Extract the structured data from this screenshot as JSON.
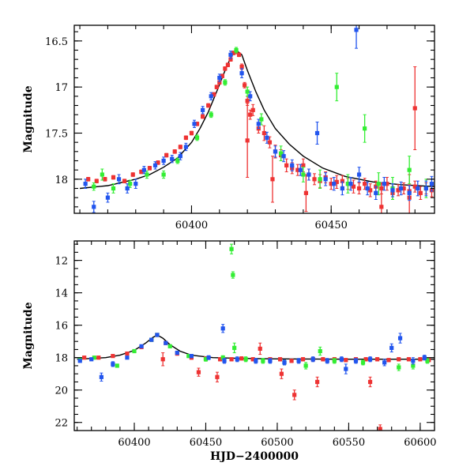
{
  "chart_data": [
    {
      "type": "scatter",
      "title": "",
      "xlabel": "",
      "ylabel": "Magnitude",
      "xlim": [
        60358,
        60487
      ],
      "ylim": [
        18.37,
        16.33
      ],
      "y_inverted": true,
      "x_ticks": [
        60400,
        60450
      ],
      "y_ticks": [
        16.5,
        17,
        17.5,
        18
      ],
      "y_tick_labels": [
        "16.5",
        "17",
        "17.5",
        "18"
      ],
      "minor_x_step": 10,
      "minor_y_step": 0.1,
      "grid": false,
      "legend": "none",
      "model_curve": {
        "name": "",
        "x": [
          60360,
          60370,
          60380,
          60385,
          60390,
          60395,
          60400,
          60403,
          60406,
          60409,
          60412,
          60414,
          60416,
          60418,
          60420,
          60423,
          60426,
          60430,
          60435,
          60440,
          60447,
          60455,
          60465,
          60475,
          60487
        ],
        "y": [
          18.1,
          18.07,
          18.0,
          17.95,
          17.87,
          17.77,
          17.6,
          17.45,
          17.27,
          17.05,
          16.82,
          16.68,
          16.6,
          16.65,
          16.82,
          17.05,
          17.25,
          17.45,
          17.62,
          17.75,
          17.88,
          17.97,
          18.03,
          18.06,
          18.08
        ]
      },
      "series": [
        {
          "color": "#ee3333",
          "x": [
            60363,
            60366,
            60369,
            60372,
            60376,
            60379,
            60382,
            60385,
            60388,
            60391,
            60394,
            60396,
            60398,
            60400,
            60402,
            60404,
            60406,
            60408,
            60409,
            60410,
            60411,
            60412,
            60413,
            60414,
            60415,
            60416,
            60417,
            60418,
            60419,
            60420,
            60421,
            60422,
            60424,
            60426,
            60428,
            60430,
            60432,
            60434,
            60436,
            60438,
            60440,
            60442,
            60444,
            60446,
            60448,
            60450,
            60452,
            60454,
            60456,
            60458,
            60460,
            60462,
            60464,
            60466,
            60468,
            60470,
            60472,
            60474,
            60476,
            60478,
            60480,
            60482,
            60484,
            60486,
            60420,
            60429,
            60441,
            60468,
            60478,
            60480
          ],
          "y": [
            18.0,
            18.02,
            18.0,
            17.98,
            18.02,
            17.95,
            17.92,
            17.88,
            17.82,
            17.74,
            17.7,
            17.65,
            17.55,
            17.5,
            17.4,
            17.32,
            17.2,
            17.08,
            17.0,
            16.95,
            16.88,
            16.8,
            16.76,
            16.7,
            16.63,
            16.62,
            16.65,
            16.78,
            16.98,
            17.15,
            17.3,
            17.25,
            17.45,
            17.5,
            17.6,
            17.7,
            17.74,
            17.85,
            17.88,
            17.9,
            17.85,
            17.95,
            18.0,
            18.02,
            17.98,
            18.05,
            18.03,
            18.02,
            18.05,
            18.08,
            18.1,
            18.05,
            18.12,
            18.08,
            18.1,
            18.05,
            18.15,
            18.12,
            18.1,
            18.13,
            18.08,
            18.15,
            18.1,
            18.12,
            17.58,
            18.0,
            18.15,
            18.3,
            18.2,
            17.23
          ],
          "yerr": [
            0.02,
            0.02,
            0.02,
            0.02,
            0.02,
            0.02,
            0.02,
            0.02,
            0.02,
            0.02,
            0.02,
            0.02,
            0.02,
            0.02,
            0.02,
            0.02,
            0.02,
            0.02,
            0.02,
            0.02,
            0.02,
            0.02,
            0.02,
            0.02,
            0.02,
            0.02,
            0.02,
            0.03,
            0.03,
            0.05,
            0.05,
            0.06,
            0.05,
            0.08,
            0.06,
            0.07,
            0.06,
            0.07,
            0.06,
            0.06,
            0.07,
            0.06,
            0.06,
            0.07,
            0.06,
            0.06,
            0.07,
            0.06,
            0.06,
            0.07,
            0.06,
            0.06,
            0.07,
            0.06,
            0.06,
            0.07,
            0.07,
            0.06,
            0.06,
            0.07,
            0.06,
            0.07,
            0.06,
            0.07,
            0.4,
            0.25,
            0.2,
            0.25,
            0.25,
            0.45
          ]
        },
        {
          "color": "#33ee33",
          "x": [
            60365,
            60368,
            60372,
            60378,
            60384,
            60390,
            60395,
            60402,
            60407,
            60412,
            60416,
            60420,
            60425,
            60432,
            60440,
            60446,
            60452,
            60456,
            60462,
            60467,
            60472,
            60478,
            60484
          ],
          "y": [
            18.08,
            17.95,
            18.1,
            18.05,
            17.95,
            17.95,
            17.8,
            17.55,
            17.3,
            16.95,
            16.6,
            17.05,
            17.35,
            17.72,
            17.95,
            18.0,
            17.0,
            18.05,
            17.45,
            18.05,
            18.1,
            17.9,
            18.1
          ],
          "yerr": [
            0.04,
            0.06,
            0.05,
            0.04,
            0.04,
            0.04,
            0.03,
            0.03,
            0.03,
            0.03,
            0.03,
            0.05,
            0.06,
            0.08,
            0.08,
            0.1,
            0.15,
            0.1,
            0.15,
            0.12,
            0.12,
            0.15,
            0.1
          ]
        },
        {
          "color": "#2255ee",
          "x": [
            60362,
            60365,
            60370,
            60374,
            60377,
            60380,
            60383,
            60387,
            60390,
            60393,
            60396,
            60398,
            60401,
            60404,
            60407,
            60410,
            60414,
            60418,
            60421,
            60424,
            60427,
            60430,
            60433,
            60436,
            60439,
            60442,
            60445,
            60448,
            60451,
            60454,
            60457,
            60460,
            60463,
            60466,
            60469,
            60472,
            60475,
            60478,
            60481,
            60484,
            60486,
            60459
          ],
          "y": [
            18.05,
            18.3,
            18.2,
            18.0,
            18.1,
            18.05,
            17.9,
            17.85,
            17.8,
            17.78,
            17.75,
            17.65,
            17.4,
            17.25,
            17.1,
            16.9,
            16.65,
            16.85,
            17.1,
            17.4,
            17.55,
            17.7,
            17.75,
            17.85,
            17.9,
            17.95,
            17.5,
            18.0,
            18.05,
            18.1,
            18.05,
            17.95,
            18.1,
            18.15,
            18.05,
            18.12,
            18.1,
            18.15,
            18.1,
            18.1,
            18.05,
            16.38
          ],
          "yerr": [
            0.05,
            0.06,
            0.05,
            0.05,
            0.05,
            0.05,
            0.04,
            0.04,
            0.04,
            0.04,
            0.04,
            0.04,
            0.04,
            0.04,
            0.04,
            0.04,
            0.04,
            0.05,
            0.05,
            0.05,
            0.06,
            0.06,
            0.06,
            0.06,
            0.06,
            0.06,
            0.12,
            0.07,
            0.07,
            0.07,
            0.07,
            0.08,
            0.07,
            0.07,
            0.07,
            0.07,
            0.07,
            0.08,
            0.08,
            0.08,
            0.08,
            0.2
          ]
        }
      ]
    },
    {
      "type": "scatter",
      "title": "",
      "xlabel": "HJD−2400000",
      "ylabel": "Magnitude",
      "xlim": [
        60358,
        60610
      ],
      "ylim": [
        22.5,
        10.8
      ],
      "y_inverted": true,
      "x_ticks": [
        60400,
        60450,
        60500,
        60550,
        60600
      ],
      "y_ticks": [
        12,
        14,
        16,
        18,
        20,
        22
      ],
      "y_tick_labels": [
        "12",
        "14",
        "16",
        "18",
        "20",
        "22"
      ],
      "minor_x_step": 10,
      "minor_y_step": 0.5,
      "grid": false,
      "legend": "none",
      "model_curve": {
        "name": "",
        "x": [
          60360,
          60380,
          60390,
          60400,
          60408,
          60413,
          60416,
          60420,
          60425,
          60432,
          60440,
          60455,
          60475,
          60500,
          60550,
          60610
        ],
        "y": [
          18.1,
          18.0,
          17.85,
          17.55,
          17.1,
          16.75,
          16.6,
          16.8,
          17.2,
          17.6,
          17.85,
          18.0,
          18.05,
          18.08,
          18.1,
          18.1
        ]
      },
      "series": [
        {
          "color": "#ee3333",
          "x": [
            60365,
            60375,
            60385,
            60395,
            60405,
            60412,
            60416,
            60422,
            60430,
            60440,
            60450,
            60460,
            60468,
            60475,
            60483,
            60488,
            60495,
            60502,
            60510,
            60512,
            60518,
            60525,
            60532,
            60540,
            60548,
            60555,
            60562,
            60570,
            60572,
            60578,
            60585,
            60592,
            60600,
            60606,
            60420,
            60445,
            60458,
            60503,
            60528,
            60565
          ],
          "y": [
            18.0,
            18.0,
            17.9,
            17.75,
            17.35,
            16.9,
            16.6,
            17.1,
            17.75,
            18.0,
            18.05,
            18.1,
            18.1,
            18.05,
            18.1,
            17.45,
            18.1,
            18.1,
            18.2,
            20.3,
            18.1,
            18.1,
            18.1,
            18.1,
            18.15,
            18.1,
            18.1,
            18.1,
            22.4,
            18.15,
            18.1,
            18.1,
            18.1,
            18.15,
            18.1,
            18.9,
            19.2,
            19.0,
            19.5,
            19.5
          ],
          "yerr": [
            0.05,
            0.05,
            0.05,
            0.05,
            0.05,
            0.05,
            0.05,
            0.08,
            0.1,
            0.1,
            0.1,
            0.1,
            0.1,
            0.1,
            0.1,
            0.35,
            0.1,
            0.1,
            0.1,
            0.3,
            0.1,
            0.1,
            0.1,
            0.1,
            0.1,
            0.1,
            0.1,
            0.1,
            0.25,
            0.1,
            0.1,
            0.1,
            0.1,
            0.1,
            0.4,
            0.25,
            0.3,
            0.3,
            0.3,
            0.3
          ]
        },
        {
          "color": "#33ee33",
          "x": [
            60362,
            60372,
            60388,
            60400,
            60412,
            60416,
            60425,
            60438,
            60450,
            60462,
            60468,
            60469,
            60478,
            60490,
            60505,
            60520,
            60540,
            60560,
            60585,
            60595,
            60605,
            60470,
            60530
          ],
          "y": [
            18.1,
            18.0,
            18.5,
            17.6,
            16.9,
            16.6,
            17.3,
            17.9,
            18.1,
            18.0,
            11.3,
            12.9,
            18.1,
            18.2,
            18.3,
            18.5,
            18.2,
            18.3,
            18.6,
            18.5,
            18.2,
            17.4,
            17.6
          ],
          "yerr": [
            0.08,
            0.08,
            0.1,
            0.05,
            0.05,
            0.05,
            0.08,
            0.1,
            0.12,
            0.12,
            0.3,
            0.2,
            0.15,
            0.15,
            0.15,
            0.2,
            0.15,
            0.15,
            0.2,
            0.2,
            0.15,
            0.3,
            0.25
          ]
        },
        {
          "color": "#2255ee",
          "x": [
            60362,
            60370,
            60377,
            60385,
            60395,
            60405,
            60412,
            60416,
            60422,
            60430,
            60440,
            60452,
            60462,
            60472,
            60485,
            60495,
            60505,
            60515,
            60525,
            60535,
            60545,
            60555,
            60565,
            60575,
            60580,
            60586,
            60595,
            60603,
            60463,
            60548
          ],
          "y": [
            18.2,
            18.1,
            19.2,
            18.4,
            18.0,
            17.3,
            16.9,
            16.6,
            17.1,
            17.7,
            17.9,
            18.0,
            16.2,
            18.1,
            18.2,
            18.2,
            18.3,
            18.2,
            18.1,
            18.2,
            18.1,
            18.2,
            18.1,
            18.3,
            17.4,
            16.8,
            18.2,
            18.0,
            18.2,
            18.7
          ],
          "yerr": [
            0.08,
            0.08,
            0.25,
            0.15,
            0.06,
            0.05,
            0.05,
            0.05,
            0.08,
            0.1,
            0.1,
            0.12,
            0.25,
            0.15,
            0.15,
            0.15,
            0.15,
            0.15,
            0.15,
            0.15,
            0.15,
            0.15,
            0.15,
            0.2,
            0.25,
            0.3,
            0.2,
            0.15,
            0.15,
            0.3
          ]
        }
      ]
    }
  ]
}
